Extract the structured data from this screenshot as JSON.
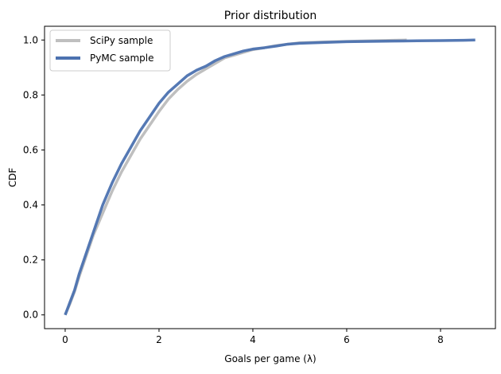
{
  "chart_data": {
    "type": "line",
    "title": "Prior distribution",
    "xlabel": "Goals per game (λ)",
    "ylabel": "CDF",
    "xlim": [
      -0.44,
      9.17
    ],
    "ylim": [
      -0.05,
      1.05
    ],
    "xticks": [
      0,
      2,
      4,
      6,
      8
    ],
    "yticks": [
      0.0,
      0.2,
      0.4,
      0.6,
      0.8,
      1.0
    ],
    "xtick_labels": [
      "0",
      "2",
      "4",
      "6",
      "8"
    ],
    "ytick_labels": [
      "0.0",
      "0.2",
      "0.4",
      "0.6",
      "0.8",
      "1.0"
    ],
    "grid": false,
    "legend_position": "top-left",
    "series": [
      {
        "name": "SciPy sample",
        "color": "#bfbfbf",
        "x": [
          0.0,
          0.1,
          0.2,
          0.3,
          0.4,
          0.5,
          0.6,
          0.7,
          0.8,
          0.9,
          1.0,
          1.2,
          1.4,
          1.6,
          1.8,
          2.0,
          2.2,
          2.4,
          2.6,
          2.8,
          3.0,
          3.2,
          3.4,
          3.6,
          3.8,
          4.0,
          4.25,
          4.5,
          4.75,
          5.0,
          5.5,
          6.0,
          6.5,
          7.0,
          7.28
        ],
        "y": [
          0.0,
          0.04,
          0.085,
          0.14,
          0.19,
          0.24,
          0.29,
          0.33,
          0.37,
          0.41,
          0.45,
          0.52,
          0.58,
          0.64,
          0.69,
          0.74,
          0.785,
          0.82,
          0.85,
          0.875,
          0.895,
          0.915,
          0.935,
          0.945,
          0.955,
          0.965,
          0.972,
          0.98,
          0.985,
          0.99,
          0.993,
          0.995,
          0.997,
          0.999,
          1.0
        ]
      },
      {
        "name": "PyMC sample",
        "color": "#4c72b0",
        "x": [
          0.0,
          0.1,
          0.2,
          0.3,
          0.4,
          0.5,
          0.6,
          0.7,
          0.8,
          0.9,
          1.0,
          1.2,
          1.4,
          1.6,
          1.8,
          2.0,
          2.2,
          2.4,
          2.6,
          2.8,
          3.0,
          3.2,
          3.4,
          3.6,
          3.8,
          4.0,
          4.25,
          4.5,
          4.75,
          5.0,
          5.5,
          6.0,
          6.5,
          7.0,
          7.5,
          8.0,
          8.5,
          8.74
        ],
        "y": [
          0.0,
          0.045,
          0.09,
          0.15,
          0.2,
          0.25,
          0.3,
          0.35,
          0.4,
          0.44,
          0.48,
          0.55,
          0.61,
          0.67,
          0.72,
          0.77,
          0.81,
          0.84,
          0.87,
          0.89,
          0.905,
          0.925,
          0.94,
          0.95,
          0.96,
          0.967,
          0.972,
          0.978,
          0.985,
          0.988,
          0.991,
          0.994,
          0.995,
          0.996,
          0.997,
          0.998,
          0.999,
          1.0
        ]
      }
    ]
  }
}
